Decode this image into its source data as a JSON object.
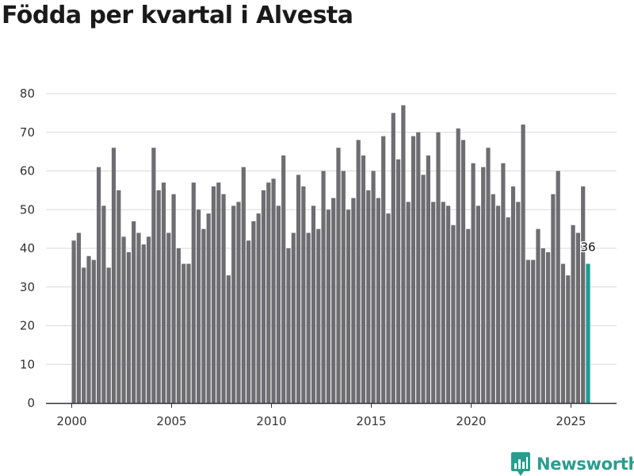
{
  "chart_data": {
    "type": "bar",
    "title": "Födda per kvartal i Alvesta",
    "xlabel": "",
    "ylabel": "",
    "ylim": [
      0,
      80
    ],
    "y_ticks": [
      0,
      10,
      20,
      30,
      40,
      50,
      60,
      70,
      80
    ],
    "x_ticks": [
      2000,
      2005,
      2010,
      2015,
      2020,
      2025
    ],
    "start_year": 2000,
    "periods_per_year": 4,
    "values": [
      42,
      44,
      35,
      38,
      37,
      61,
      51,
      35,
      66,
      55,
      43,
      39,
      47,
      44,
      41,
      43,
      66,
      55,
      57,
      44,
      54,
      40,
      36,
      36,
      57,
      50,
      45,
      49,
      56,
      57,
      54,
      33,
      51,
      52,
      61,
      42,
      47,
      49,
      55,
      57,
      58,
      51,
      64,
      40,
      44,
      59,
      56,
      44,
      51,
      45,
      60,
      50,
      53,
      66,
      60,
      50,
      53,
      68,
      64,
      55,
      60,
      53,
      69,
      49,
      75,
      63,
      77,
      52,
      69,
      70,
      59,
      64,
      52,
      70,
      52,
      51,
      46,
      71,
      68,
      45,
      62,
      51,
      61,
      66,
      54,
      51,
      62,
      48,
      56,
      52,
      72,
      37,
      37,
      45,
      40,
      39,
      54,
      60,
      36,
      33,
      46,
      44,
      56,
      36
    ],
    "highlight": {
      "value_label": "36",
      "color": "#1a9e8f"
    },
    "bar_color": "#6d6d72",
    "grid": true
  },
  "brand": {
    "name": "Newsworthy",
    "color": "#2a9d8f"
  }
}
